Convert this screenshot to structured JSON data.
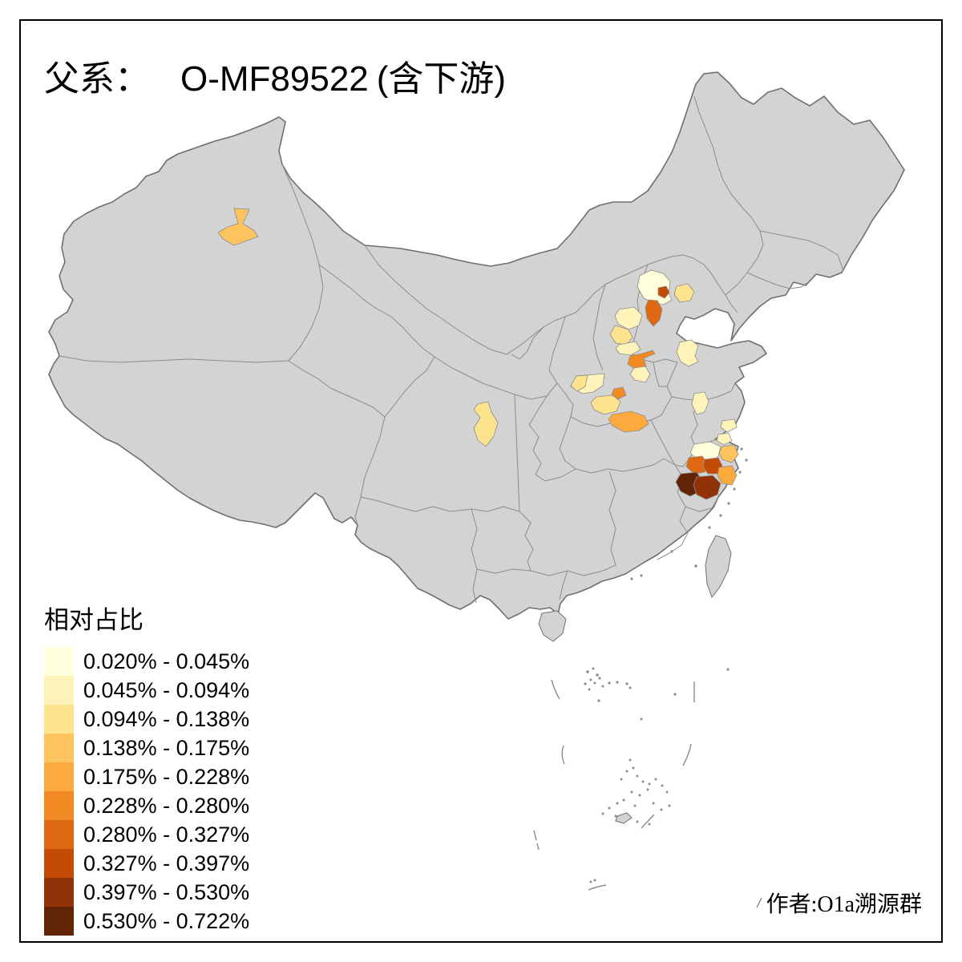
{
  "title": {
    "prefix": "父系：",
    "code": "O-MF89522",
    "suffix": "(含下游)"
  },
  "attribution": "作者:O1a溯源群",
  "legend": {
    "title": "相对占比",
    "classes": [
      {
        "label": "0.020% - 0.045%",
        "color": "#FFFFDC"
      },
      {
        "label": "0.045% - 0.094%",
        "color": "#FEF3B9"
      },
      {
        "label": "0.094% - 0.138%",
        "color": "#FDE38E"
      },
      {
        "label": "0.138% - 0.175%",
        "color": "#FDC45F"
      },
      {
        "label": "0.175% - 0.228%",
        "color": "#FCAA3D"
      },
      {
        "label": "0.228% - 0.280%",
        "color": "#F18A23"
      },
      {
        "label": "0.280% - 0.327%",
        "color": "#DF6913"
      },
      {
        "label": "0.327% - 0.397%",
        "color": "#C34B05"
      },
      {
        "label": "0.397% - 0.530%",
        "color": "#913208"
      },
      {
        "label": "0.530% - 0.722%",
        "color": "#622406"
      }
    ]
  },
  "map": {
    "colors": {
      "land": "#d3d3d3",
      "nat-border": "#6f6f6f",
      "prov-border": "#8c8c8c",
      "sea": "#ffffff"
    },
    "regions": [
      {
        "id": "xinjiang-north",
        "class": 4
      },
      {
        "id": "beijing-outer",
        "class": 1
      },
      {
        "id": "beijing-city",
        "class": 8
      },
      {
        "id": "tianjin-langfang",
        "class": 7
      },
      {
        "id": "tangshan",
        "class": 3
      },
      {
        "id": "baoding",
        "class": 2
      },
      {
        "id": "shijiazhuang",
        "class": 3
      },
      {
        "id": "handan",
        "class": 2
      },
      {
        "id": "shandong-central",
        "class": 2
      },
      {
        "id": "zhengzhou",
        "class": 6
      },
      {
        "id": "xuchang",
        "class": 2
      },
      {
        "id": "luoyang",
        "class": 2
      },
      {
        "id": "sanmenxia",
        "class": 3
      },
      {
        "id": "pingdingshan",
        "class": 6
      },
      {
        "id": "nanyang",
        "class": 3
      },
      {
        "id": "xiangyang-suizhou",
        "class": 5
      },
      {
        "id": "sichuan-central",
        "class": 3
      },
      {
        "id": "jiangsu-central",
        "class": 2
      },
      {
        "id": "shanghai",
        "class": 2
      },
      {
        "id": "jiaxing",
        "class": 2
      },
      {
        "id": "hangzhou",
        "class": 1
      },
      {
        "id": "ningbo",
        "class": 4
      },
      {
        "id": "jinhua",
        "class": 7
      },
      {
        "id": "shaoxing",
        "class": 8
      },
      {
        "id": "taizhou-zj",
        "class": 5
      },
      {
        "id": "quzhou",
        "class": 10
      },
      {
        "id": "lishui",
        "class": 9
      }
    ]
  },
  "chart_data": {
    "type": "choropleth",
    "title": "父系： O-MF89522 (含下游)",
    "legend_title": "相对占比",
    "bins": [
      "0.020% - 0.045%",
      "0.045% - 0.094%",
      "0.094% - 0.138%",
      "0.138% - 0.175%",
      "0.175% - 0.228%",
      "0.228% - 0.280%",
      "0.280% - 0.327%",
      "0.327% - 0.397%",
      "0.397% - 0.530%",
      "0.530% - 0.722%"
    ],
    "bin_colors": [
      "#FFFFDC",
      "#FEF3B9",
      "#FDE38E",
      "#FDC45F",
      "#FCAA3D",
      "#F18A23",
      "#DF6913",
      "#C34B05",
      "#913208",
      "#622406"
    ],
    "regions": [
      {
        "name": "xinjiang-north",
        "bin": 4
      },
      {
        "name": "beijing-outer",
        "bin": 1
      },
      {
        "name": "beijing-city",
        "bin": 8
      },
      {
        "name": "tianjin-langfang",
        "bin": 7
      },
      {
        "name": "tangshan",
        "bin": 3
      },
      {
        "name": "baoding",
        "bin": 2
      },
      {
        "name": "shijiazhuang",
        "bin": 3
      },
      {
        "name": "handan",
        "bin": 2
      },
      {
        "name": "shandong-central",
        "bin": 2
      },
      {
        "name": "zhengzhou",
        "bin": 6
      },
      {
        "name": "xuchang",
        "bin": 2
      },
      {
        "name": "luoyang",
        "bin": 2
      },
      {
        "name": "sanmenxia",
        "bin": 3
      },
      {
        "name": "pingdingshan",
        "bin": 6
      },
      {
        "name": "nanyang",
        "bin": 3
      },
      {
        "name": "xiangyang-suizhou",
        "bin": 5
      },
      {
        "name": "sichuan-central",
        "bin": 3
      },
      {
        "name": "jiangsu-central",
        "bin": 2
      },
      {
        "name": "shanghai",
        "bin": 2
      },
      {
        "name": "jiaxing",
        "bin": 2
      },
      {
        "name": "hangzhou",
        "bin": 1
      },
      {
        "name": "ningbo",
        "bin": 4
      },
      {
        "name": "jinhua",
        "bin": 7
      },
      {
        "name": "shaoxing",
        "bin": 8
      },
      {
        "name": "taizhou-zj",
        "bin": 5
      },
      {
        "name": "quzhou",
        "bin": 10
      },
      {
        "name": "lishui",
        "bin": 9
      }
    ]
  }
}
